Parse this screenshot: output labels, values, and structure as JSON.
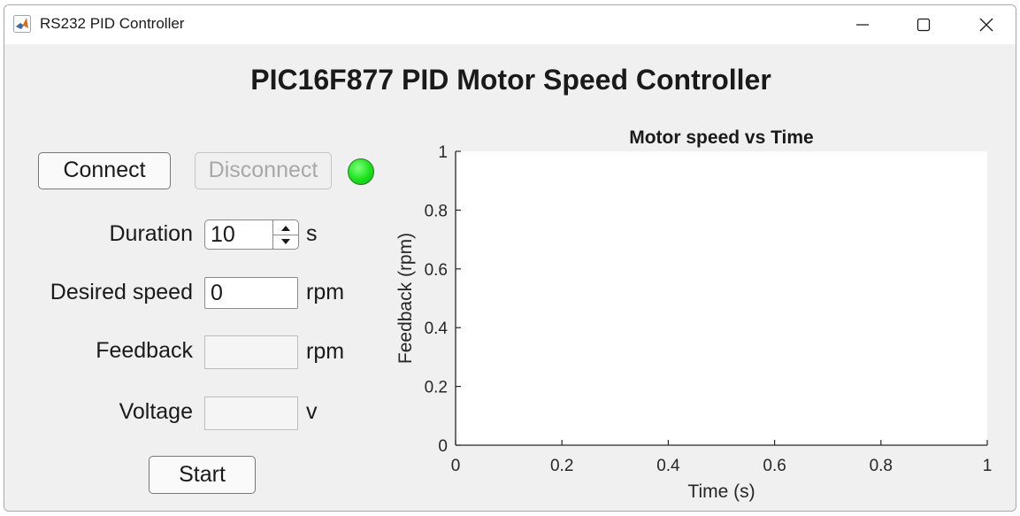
{
  "window": {
    "title": "RS232 PID Controller",
    "icons": {
      "app": "matlab-logo-icon",
      "minimize": "minimize-icon",
      "maximize": "maximize-icon",
      "close": "close-icon"
    }
  },
  "heading": "PIC16F877 PID Motor Speed Controller",
  "controls": {
    "connect_label": "Connect",
    "disconnect_label": "Disconnect",
    "status_lamp_color": "#19e219",
    "duration": {
      "label": "Duration",
      "value": "10",
      "unit": "s"
    },
    "desired_speed": {
      "label": "Desired speed",
      "value": "0",
      "unit": "rpm"
    },
    "feedback": {
      "label": "Feedback",
      "value": "",
      "unit": "rpm"
    },
    "voltage": {
      "label": "Voltage",
      "value": "",
      "unit": "v"
    },
    "start_label": "Start"
  },
  "chart_data": {
    "type": "line",
    "title": "Motor speed vs Time",
    "xlabel": "Time (s)",
    "ylabel": "Feedback (rpm)",
    "xlim": [
      0,
      1
    ],
    "ylim": [
      0,
      1
    ],
    "xticks": [
      "0",
      "0.2",
      "0.4",
      "0.6",
      "0.8",
      "1"
    ],
    "yticks": [
      "0",
      "0.2",
      "0.4",
      "0.6",
      "0.8",
      "1"
    ],
    "series": [],
    "grid": false
  }
}
